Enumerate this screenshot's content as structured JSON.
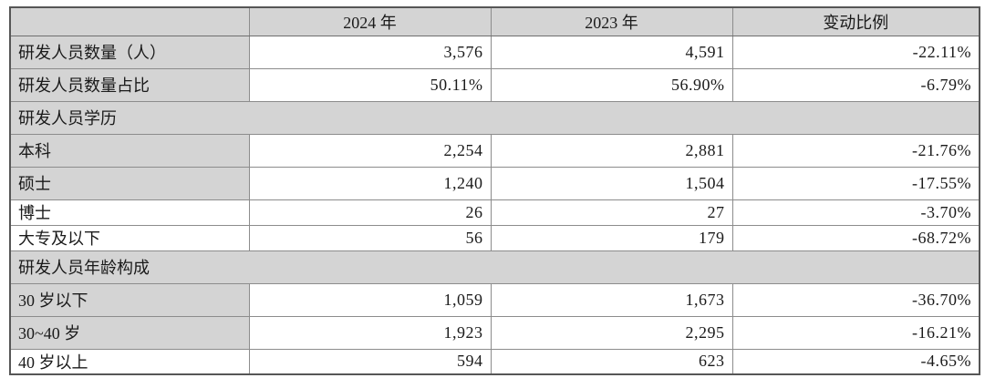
{
  "colors": {
    "cell_shade": "#d4d4d4",
    "border_inner": "#8c8c8c",
    "border_outer": "#565656",
    "text": "#1a1a1a",
    "background": "#ffffff"
  },
  "table": {
    "columns": [
      "",
      "2024 年",
      "2023 年",
      "变动比例"
    ],
    "rows": [
      {
        "type": "data",
        "shaded_label": true,
        "label": "研发人员数量（人）",
        "y2024": "3,576",
        "y2023": "4,591",
        "change": "-22.11%"
      },
      {
        "type": "data",
        "shaded_label": true,
        "label": "研发人员数量占比",
        "y2024": "50.11%",
        "y2023": "56.90%",
        "change": "-6.79%"
      },
      {
        "type": "section",
        "label": "研发人员学历"
      },
      {
        "type": "data",
        "shaded_label": true,
        "label": "本科",
        "y2024": "2,254",
        "y2023": "2,881",
        "change": "-21.76%"
      },
      {
        "type": "data",
        "shaded_label": true,
        "label": "硕士",
        "y2024": "1,240",
        "y2023": "1,504",
        "change": "-17.55%"
      },
      {
        "type": "data",
        "shaded_label": false,
        "label": "博士",
        "y2024": "26",
        "y2023": "27",
        "change": "-3.70%"
      },
      {
        "type": "data",
        "shaded_label": false,
        "label": "大专及以下",
        "y2024": "56",
        "y2023": "179",
        "change": "-68.72%"
      },
      {
        "type": "section",
        "label": "研发人员年龄构成"
      },
      {
        "type": "data",
        "shaded_label": true,
        "label": "30 岁以下",
        "y2024": "1,059",
        "y2023": "1,673",
        "change": "-36.70%"
      },
      {
        "type": "data",
        "shaded_label": true,
        "label": "30~40 岁",
        "y2024": "1,923",
        "y2023": "2,295",
        "change": "-16.21%"
      },
      {
        "type": "data",
        "shaded_label": false,
        "label": "40 岁以上",
        "y2024": "594",
        "y2023": "623",
        "change": "-4.65%"
      }
    ]
  }
}
